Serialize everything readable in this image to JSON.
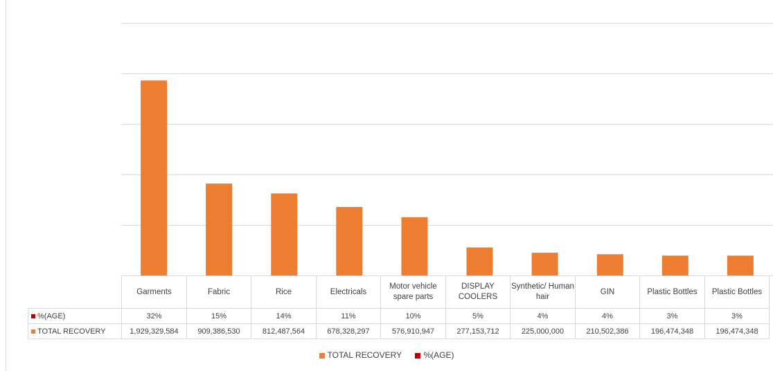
{
  "colors": {
    "total_recovery": "#ed7d31",
    "percentage": "#c00000",
    "grid": "#d9d9d9"
  },
  "chart_data": {
    "type": "bar",
    "categories": [
      "Garments",
      "Fabric",
      "Rice",
      "Electricals",
      "Motor vehicle spare parts",
      "DISPLAY COOLERS",
      "Synthetic/ Human hair",
      "GIN",
      "Plastic Bottles",
      "Plastic Bottles"
    ],
    "series": [
      {
        "name": "TOTAL RECOVERY",
        "values": [
          1929329584,
          909386530,
          812487564,
          678328297,
          576910947,
          277153712,
          225000000,
          210502386,
          196474348,
          196474348
        ]
      },
      {
        "name": "%(AGE)",
        "values": [
          32,
          15,
          14,
          11,
          10,
          5,
          4,
          4,
          3,
          3
        ]
      }
    ],
    "ylim": [
      0,
      2500000000
    ],
    "grid": true,
    "legend_position": "bottom",
    "data_table": true
  },
  "table": {
    "headers": [
      "Garments",
      "Fabric",
      "Rice",
      "Electricals",
      "Motor vehicle spare parts",
      "DISPLAY COOLERS",
      "Synthetic/ Human hair",
      "GIN",
      "Plastic Bottles",
      "Plastic Bottles"
    ],
    "rows": [
      {
        "label": "%(AGE)",
        "cells": [
          "32%",
          "15%",
          "14%",
          "11%",
          "10%",
          "5%",
          "4%",
          "4%",
          "3%",
          "3%"
        ]
      },
      {
        "label": "TOTAL RECOVERY",
        "cells": [
          "1,929,329,584",
          "909,386,530",
          "812,487,564",
          "678,328,297",
          "576,910,947",
          "277,153,712",
          "225,000,000",
          "210,502,386",
          "196,474,348",
          "196,474,348"
        ]
      }
    ]
  },
  "legend": [
    "TOTAL RECOVERY",
    "%(AGE)"
  ]
}
